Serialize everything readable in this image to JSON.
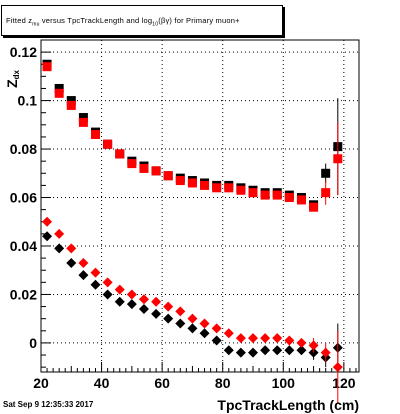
{
  "title": {
    "part1": "Fitted  z",
    "sub1": "mu",
    "part2": "  versus TpcTrackLength and log",
    "sub2": "10",
    "part3": "(βγ) for Primary muon+"
  },
  "timestamp": "Sat Sep  9 12:35:33 2017",
  "colors": {
    "series_black": "#000000",
    "series_red": "#ff0000",
    "grid": "#000000"
  },
  "chart_data": {
    "type": "scatter",
    "xlabel": "TpcTrackLength (cm)",
    "ylabel": "Z_{dx}",
    "xlim": [
      20,
      125
    ],
    "ylim": [
      -0.012,
      0.125
    ],
    "xticks": [
      20,
      40,
      60,
      80,
      100,
      120
    ],
    "xtick_labels": [
      "20",
      "40",
      "60",
      "80",
      "100",
      "120"
    ],
    "yticks": [
      0,
      0.02,
      0.04,
      0.06,
      0.08,
      0.1,
      0.12
    ],
    "ytick_labels": [
      "0",
      "0.02",
      "0.04",
      "0.06",
      "0.08",
      "0.1",
      "0.12"
    ],
    "grid": true,
    "series": [
      {
        "color": "black",
        "marker": "square",
        "x": [
          22,
          26,
          30,
          34,
          38,
          42,
          46,
          50,
          54,
          58,
          62,
          66,
          70,
          74,
          78,
          82,
          86,
          90,
          94,
          98,
          102,
          106,
          110,
          114,
          118
        ],
        "y": [
          0.115,
          0.105,
          0.1,
          0.093,
          0.087,
          0.082,
          0.078,
          0.075,
          0.073,
          0.071,
          0.069,
          0.068,
          0.067,
          0.066,
          0.065,
          0.065,
          0.064,
          0.063,
          0.062,
          0.062,
          0.061,
          0.06,
          0.057,
          0.07,
          0.081
        ],
        "err": [
          0,
          0,
          0,
          0,
          0,
          0,
          0,
          0,
          0,
          0,
          0,
          0,
          0,
          0,
          0,
          0,
          0,
          0,
          0,
          0,
          0,
          0,
          0,
          0.004,
          0.02
        ]
      },
      {
        "color": "red",
        "marker": "square",
        "x": [
          22,
          26,
          30,
          34,
          38,
          42,
          46,
          50,
          54,
          58,
          62,
          66,
          70,
          74,
          78,
          82,
          86,
          90,
          94,
          98,
          102,
          106,
          110,
          114,
          118
        ],
        "y": [
          0.114,
          0.103,
          0.098,
          0.091,
          0.086,
          0.082,
          0.078,
          0.074,
          0.072,
          0.071,
          0.069,
          0.067,
          0.066,
          0.065,
          0.064,
          0.064,
          0.063,
          0.062,
          0.061,
          0.061,
          0.06,
          0.059,
          0.056,
          0.062,
          0.076
        ],
        "err": [
          0,
          0,
          0,
          0,
          0,
          0,
          0,
          0,
          0,
          0,
          0,
          0,
          0,
          0,
          0,
          0,
          0,
          0,
          0,
          0,
          0,
          0,
          0,
          0.005,
          0.015
        ]
      },
      {
        "color": "black",
        "marker": "diamond",
        "x": [
          22,
          26,
          30,
          34,
          38,
          42,
          46,
          50,
          54,
          58,
          62,
          66,
          70,
          74,
          78,
          82,
          86,
          90,
          94,
          98,
          102,
          106,
          110,
          114,
          118
        ],
        "y": [
          0.044,
          0.039,
          0.033,
          0.028,
          0.024,
          0.02,
          0.017,
          0.016,
          0.014,
          0.012,
          0.01,
          0.008,
          0.006,
          0.004,
          0.001,
          -0.003,
          -0.004,
          -0.004,
          -0.003,
          -0.003,
          -0.003,
          -0.003,
          -0.004,
          -0.006,
          -0.002
        ],
        "err": [
          0,
          0,
          0,
          0,
          0,
          0,
          0,
          0,
          0,
          0,
          0,
          0,
          0,
          0,
          0,
          0,
          0,
          0,
          0,
          0,
          0,
          0,
          0.003,
          0.004,
          0.01
        ]
      },
      {
        "color": "red",
        "marker": "diamond",
        "x": [
          22,
          26,
          30,
          34,
          38,
          42,
          46,
          50,
          54,
          58,
          62,
          66,
          70,
          74,
          78,
          82,
          86,
          90,
          94,
          98,
          102,
          106,
          110,
          114,
          118
        ],
        "y": [
          0.05,
          0.045,
          0.039,
          0.033,
          0.029,
          0.025,
          0.022,
          0.02,
          0.018,
          0.017,
          0.015,
          0.013,
          0.01,
          0.008,
          0.006,
          0.004,
          0.002,
          0.002,
          0.002,
          0.002,
          0.001,
          0.0,
          -0.001,
          -0.004,
          -0.01
        ],
        "err": [
          0,
          0,
          0,
          0,
          0,
          0,
          0,
          0,
          0,
          0,
          0,
          0,
          0,
          0,
          0,
          0,
          0,
          0,
          0,
          0,
          0,
          0,
          0.003,
          0.004,
          0.015
        ]
      }
    ]
  }
}
